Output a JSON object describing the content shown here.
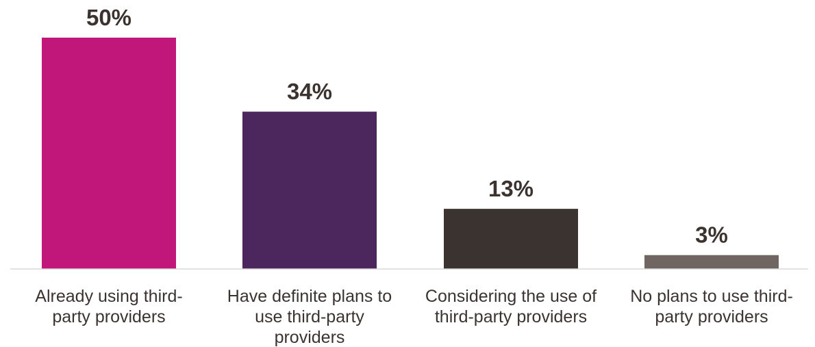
{
  "chart_data": {
    "type": "bar",
    "categories": [
      "Already using third-party providers",
      "Have definite plans to use third-party providers",
      "Considering the use of third-party providers",
      "No plans to use third-party providers"
    ],
    "category_label_lines": [
      [
        "Already using third-",
        "party providers"
      ],
      [
        "Have definite plans to",
        "use third-party",
        "providers"
      ],
      [
        "Considering the use of",
        "third-party providers"
      ],
      [
        "No plans to use third-",
        "party providers"
      ]
    ],
    "values": [
      50,
      34,
      13,
      3
    ],
    "value_labels": [
      "50%",
      "34%",
      "13%",
      "3%"
    ],
    "bar_colors": [
      "#c2177a",
      "#4b275e",
      "#3b3330",
      "#6f6662"
    ],
    "title": "",
    "xlabel": "",
    "ylabel": "",
    "ylim": [
      0,
      50
    ],
    "grid": false,
    "legend": "none"
  }
}
